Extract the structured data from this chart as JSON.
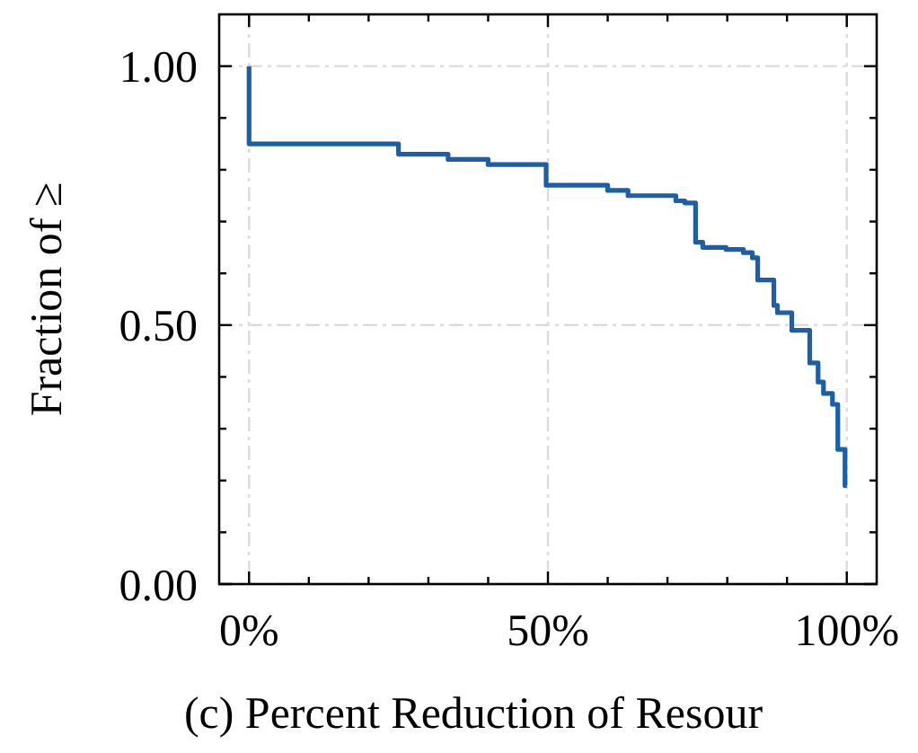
{
  "chart_data": {
    "type": "step",
    "xlabel": "(c) Percent Reduction of Resour",
    "ylabel": "Fraction of ≥",
    "x": [
      0,
      0,
      25,
      33.3,
      40,
      49.7,
      60,
      63.4,
      71.4,
      72.9,
      74.7,
      75.9,
      79.8,
      82.7,
      84.2,
      85.1,
      87.8,
      88.4,
      90.8,
      93.8,
      95.2,
      96.1,
      97.6,
      98.5,
      99.7,
      100
    ],
    "series": [
      {
        "color": "#1a5fa8",
        "values": [
          1.0,
          0.85,
          0.83,
          0.82,
          0.81,
          0.77,
          0.76,
          0.75,
          0.74,
          0.736,
          0.66,
          0.65,
          0.646,
          0.64,
          0.63,
          0.587,
          0.538,
          0.524,
          0.49,
          0.427,
          0.39,
          0.368,
          0.347,
          0.26,
          0.19,
          0.19
        ]
      }
    ],
    "xlim": [
      -5,
      105
    ],
    "ylim": [
      0,
      1.1
    ],
    "xticks": [
      {
        "value": 0,
        "label": "0%"
      },
      {
        "value": 10,
        "label": null
      },
      {
        "value": 20,
        "label": null
      },
      {
        "value": 30,
        "label": null
      },
      {
        "value": 40,
        "label": null
      },
      {
        "value": 50,
        "label": "50%"
      },
      {
        "value": 60,
        "label": null
      },
      {
        "value": 70,
        "label": null
      },
      {
        "value": 80,
        "label": null
      },
      {
        "value": 90,
        "label": null
      },
      {
        "value": 100,
        "label": "100%"
      }
    ],
    "yticks": [
      {
        "value": 0,
        "label": "0.00"
      },
      {
        "value": 0.1,
        "label": null
      },
      {
        "value": 0.2,
        "label": null
      },
      {
        "value": 0.3,
        "label": null
      },
      {
        "value": 0.4,
        "label": null
      },
      {
        "value": 0.5,
        "label": "0.50"
      },
      {
        "value": 0.6,
        "label": null
      },
      {
        "value": 0.7,
        "label": null
      },
      {
        "value": 0.8,
        "label": null
      },
      {
        "value": 0.9,
        "label": null
      },
      {
        "value": 1.0,
        "label": "1.00"
      }
    ],
    "grid": true,
    "line_style": "solid"
  }
}
